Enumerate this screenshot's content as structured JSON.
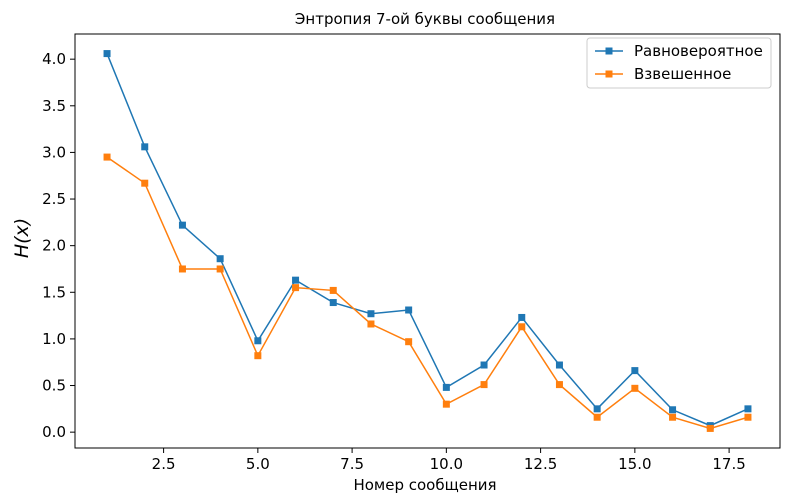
{
  "chart_data": {
    "type": "line",
    "title": "Энтропия 7-ой буквы сообщения",
    "xlabel": "Номер сообщения",
    "ylabel": "H(x)",
    "xlim": [
      0.15,
      18.85
    ],
    "ylim": [
      -0.17,
      4.27
    ],
    "xticks": [
      2.5,
      5.0,
      7.5,
      10.0,
      12.5,
      15.0,
      17.5
    ],
    "xtick_labels": [
      "2.5",
      "5.0",
      "7.5",
      "10.0",
      "12.5",
      "15.0",
      "17.5"
    ],
    "yticks": [
      0.0,
      0.5,
      1.0,
      1.5,
      2.0,
      2.5,
      3.0,
      3.5,
      4.0
    ],
    "ytick_labels": [
      "0.0",
      "0.5",
      "1.0",
      "1.5",
      "2.0",
      "2.5",
      "3.0",
      "3.5",
      "4.0"
    ],
    "grid": false,
    "legend_position": "top-right",
    "x": [
      1,
      2,
      3,
      4,
      5,
      6,
      7,
      8,
      9,
      10,
      11,
      12,
      13,
      14,
      15,
      16,
      17,
      18
    ],
    "series": [
      {
        "name": "Равновероятное",
        "color": "#1f77b4",
        "marker": "square",
        "values": [
          4.06,
          3.06,
          2.22,
          1.86,
          0.98,
          1.63,
          1.39,
          1.27,
          1.31,
          0.48,
          0.72,
          1.23,
          0.72,
          0.25,
          0.66,
          0.24,
          0.07,
          0.25
        ]
      },
      {
        "name": "Взвешенное",
        "color": "#ff7f0e",
        "marker": "square",
        "values": [
          2.95,
          2.67,
          1.75,
          1.75,
          0.82,
          1.55,
          1.52,
          1.16,
          0.97,
          0.3,
          0.51,
          1.13,
          0.51,
          0.16,
          0.47,
          0.16,
          0.04,
          0.16
        ]
      }
    ]
  }
}
